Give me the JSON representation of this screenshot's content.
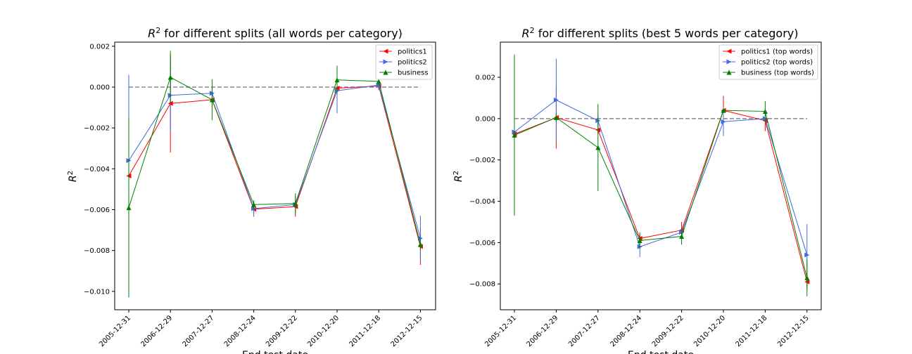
{
  "chart_data": [
    {
      "type": "line",
      "title": "$R^2$ for different splits (all words per category)",
      "title_text": "for different splits (all words per category)",
      "xlabel": "End test date",
      "ylabel": "R",
      "categories": [
        "2005-12-31",
        "2006-12-29",
        "2007-12-27",
        "2008-12-24",
        "2009-12-22",
        "2010-12-20",
        "2011-12-18",
        "2012-12-15"
      ],
      "ylim": [
        -0.0109,
        0.0022
      ],
      "yticks": [
        0.002,
        0.0,
        -0.002,
        -0.004,
        -0.006,
        -0.008,
        -0.01
      ],
      "ytick_labels": [
        "0.002",
        "0.000",
        "−0.002",
        "−0.004",
        "−0.006",
        "−0.008",
        "−0.010"
      ],
      "reference_line": 0.0,
      "legend_position": "top-right",
      "series": [
        {
          "name": "politics1",
          "color": "#ff0000",
          "marker": "tri-left",
          "values": [
            -0.00435,
            -0.0008,
            -0.00062,
            -0.00598,
            -0.00585,
            -5e-05,
            5e-05,
            -0.0078
          ],
          "errors": [
            0.0027,
            0.0024,
            0.0004,
            0.0002,
            0.0005,
            0.0004,
            0.0002,
            0.0009
          ]
        },
        {
          "name": "politics2",
          "color": "#4169e1",
          "marker": "tri-right",
          "values": [
            -0.0036,
            -0.0004,
            -0.0003,
            -0.00595,
            -0.00575,
            -0.00018,
            0.0001,
            -0.0074
          ],
          "errors": [
            0.0042,
            0.0018,
            0.0003,
            0.0004,
            0.0002,
            0.0011,
            0.0002,
            0.0011
          ]
        },
        {
          "name": "business",
          "color": "#008000",
          "marker": "tri-up",
          "values": [
            -0.0059,
            0.00048,
            -0.00062,
            -0.00575,
            -0.0057,
            0.00035,
            0.00028,
            -0.0077
          ],
          "errors": [
            0.0044,
            0.0013,
            0.001,
            0.0002,
            0.0005,
            0.0007,
            0.0001,
            0.0003
          ]
        }
      ]
    },
    {
      "type": "line",
      "title": "$R^2$ for different splits (best 5 words per category)",
      "title_text": "for different splits (best 5 words per category)",
      "xlabel": "End test date",
      "ylabel": "R",
      "categories": [
        "2005-12-31",
        "2006-12-29",
        "2007-12-27",
        "2008-12-24",
        "2009-12-22",
        "2010-12-20",
        "2011-12-18",
        "2012-12-15"
      ],
      "ylim": [
        -0.00925,
        0.0037
      ],
      "yticks": [
        0.002,
        0.0,
        -0.002,
        -0.004,
        -0.006,
        -0.008
      ],
      "ytick_labels": [
        "0.002",
        "0.000",
        "−0.002",
        "−0.004",
        "−0.006",
        "−0.008"
      ],
      "reference_line": 0.0,
      "legend_position": "top-right",
      "series": [
        {
          "name": "politics1 (top words)",
          "color": "#ff0000",
          "marker": "tri-left",
          "values": [
            -0.00075,
            5e-05,
            -0.00055,
            -0.0058,
            -0.0054,
            0.0004,
            -0.0001,
            -0.0079
          ],
          "errors": [
            0.0002,
            0.0015,
            0.0002,
            0.0002,
            0.0004,
            0.0007,
            0.0005,
            0.0004
          ]
        },
        {
          "name": "politics2 (top words)",
          "color": "#4169e1",
          "marker": "tri-right",
          "values": [
            -0.00065,
            0.0009,
            -0.0001,
            -0.0062,
            -0.0055,
            -0.00015,
            0.0,
            -0.0066
          ],
          "errors": [
            0.0002,
            0.002,
            0.0003,
            0.0005,
            0.0002,
            0.0007,
            0.0001,
            0.0015
          ]
        },
        {
          "name": "business (top words)",
          "color": "#008000",
          "marker": "tri-up",
          "values": [
            -0.0008,
            5e-05,
            -0.0014,
            -0.0059,
            -0.0057,
            0.0004,
            0.00035,
            -0.0077
          ],
          "errors": [
            0.0039,
            0.0002,
            0.0021,
            0.0004,
            0.0004,
            0.0001,
            0.0005,
            0.0009
          ]
        }
      ]
    }
  ]
}
